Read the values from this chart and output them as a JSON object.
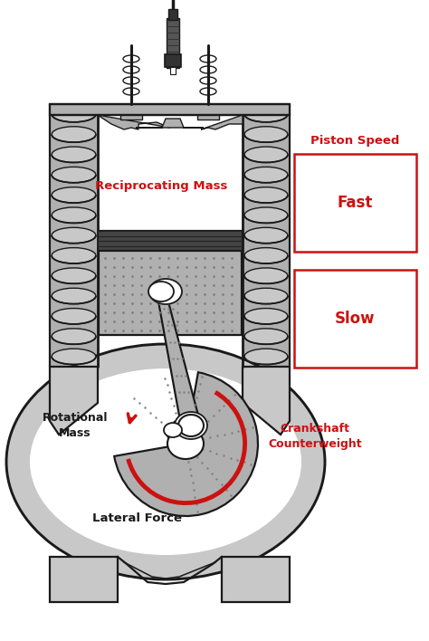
{
  "bg": "#ffffff",
  "dark": "#1a1a1a",
  "stipple": "#b0b0b0",
  "stipple_dark": "#888888",
  "wall_gray": "#c8c8c8",
  "coil_light": "#d8d8d8",
  "ring_dark": "#444444",
  "red": "#cc1111",
  "label_recip": "Reciprocating Mass",
  "label_rot": "Rotational\nMass",
  "label_lat": "Lateral Force",
  "label_crank": "Crankshaft\nCounterweight",
  "label_speed": "Piston Speed",
  "label_fast": "Fast",
  "label_slow": "Slow",
  "figw": 4.74,
  "figh": 7.08,
  "dpi": 100
}
